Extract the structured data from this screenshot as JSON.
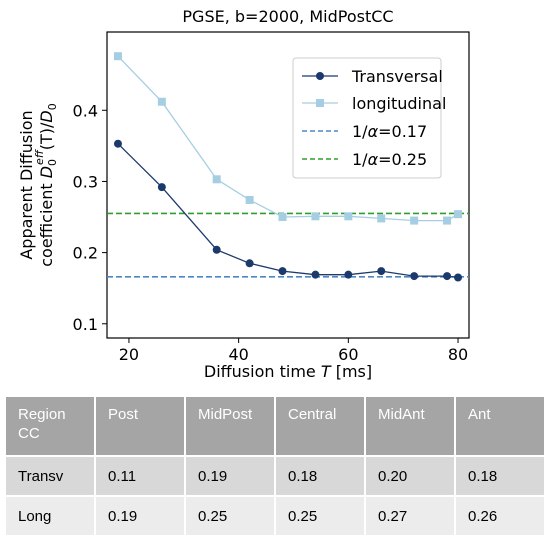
{
  "chart_data": {
    "type": "line",
    "title": "PGSE, b=2000, MidPostCC",
    "xlabel_prefix": "Diffusion time ",
    "xlabel_var": "T",
    "xlabel_suffix": " [ms]",
    "ylabel_line1": "Apparent Diffusion",
    "ylabel_line2_prefix": "coefficient ",
    "ylabel_line2_D": "D",
    "ylabel_line2_sub": "0",
    "ylabel_line2_sup": "eff",
    "ylabel_line2_mid": "(T)/",
    "ylabel_line2_D2": "D",
    "ylabel_line2_sub2": "0",
    "xlim": [
      16,
      82
    ],
    "ylim": [
      0.08,
      0.51
    ],
    "xticks": [
      "20",
      "40",
      "60",
      "80"
    ],
    "yticks": [
      "0.1",
      "0.2",
      "0.3",
      "0.4"
    ],
    "grid": false,
    "legend_position": "upper-right",
    "series": [
      {
        "name": "Transversal",
        "color": "#1b3a6b",
        "marker": "circle",
        "x": [
          18,
          26,
          36,
          42,
          48,
          54,
          60,
          66,
          72,
          78,
          80
        ],
        "y": [
          0.353,
          0.292,
          0.204,
          0.185,
          0.174,
          0.169,
          0.169,
          0.174,
          0.167,
          0.167,
          0.165
        ]
      },
      {
        "name": "longitudinal",
        "color": "#a6cee3",
        "marker": "square",
        "x": [
          18,
          26,
          36,
          42,
          48,
          54,
          60,
          66,
          72,
          78,
          80
        ],
        "y": [
          0.476,
          0.412,
          0.303,
          0.274,
          0.25,
          0.251,
          0.251,
          0.248,
          0.245,
          0.245,
          0.254
        ]
      }
    ],
    "hlines": [
      {
        "label_prefix": "1/",
        "label_alpha": "α",
        "label_suffix": "=0.17",
        "y": 0.166,
        "color": "#4a88c7"
      },
      {
        "label_prefix": "1/",
        "label_alpha": "α",
        "label_suffix": "=0.25",
        "y": 0.255,
        "color": "#2ca02c"
      }
    ]
  },
  "table": {
    "header": [
      "Region\nCC",
      "Post",
      "MidPost",
      "Central",
      "MidAnt",
      "Ant"
    ],
    "rows": [
      [
        "Transv",
        "0.11",
        "0.19",
        "0.18",
        "0.20",
        "0.18"
      ],
      [
        "Long",
        "0.19",
        "0.25",
        "0.25",
        "0.27",
        "0.26"
      ]
    ]
  }
}
